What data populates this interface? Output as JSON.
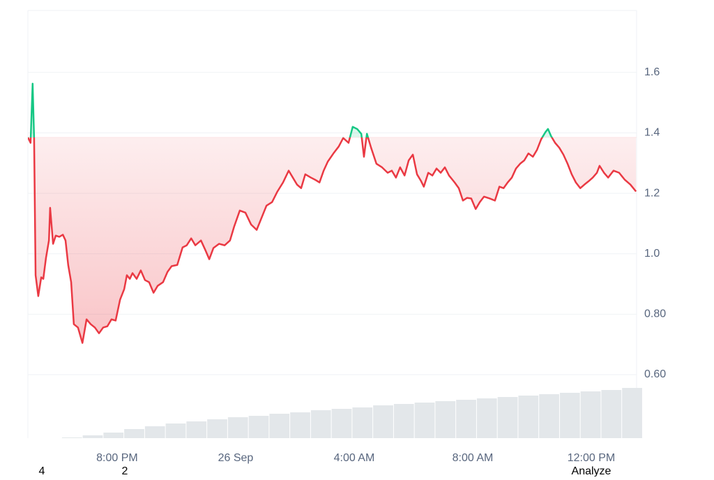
{
  "chart_data": {
    "type": "line",
    "x": [
      0,
      0.09,
      0.16,
      0.21,
      0.26,
      0.35,
      0.45,
      0.52,
      0.61,
      0.71,
      0.75,
      0.85,
      0.94,
      1.06,
      1.18,
      1.27,
      1.36,
      1.46,
      1.55,
      1.69,
      1.84,
      1.98,
      2.12,
      2.26,
      2.4,
      2.54,
      2.68,
      2.82,
      2.96,
      3.11,
      3.25,
      3.34,
      3.44,
      3.53,
      3.67,
      3.81,
      3.95,
      4.09,
      4.24,
      4.38,
      4.56,
      4.71,
      4.85,
      5.04,
      5.22,
      5.36,
      5.51,
      5.65,
      5.84,
      5.98,
      6.12,
      6.26,
      6.45,
      6.64,
      6.82,
      6.96,
      7.15,
      7.34,
      7.53,
      7.72,
      7.86,
      8.05,
      8.24,
      8.42,
      8.61,
      8.8,
      8.94,
      9.08,
      9.22,
      9.36,
      9.55,
      9.69,
      9.84,
      9.98,
      10.12,
      10.31,
      10.49,
      10.64,
      10.82,
      10.96,
      11.11,
      11.25,
      11.34,
      11.44,
      11.58,
      11.76,
      11.95,
      12.14,
      12.28,
      12.42,
      12.56,
      12.71,
      12.85,
      12.99,
      13.13,
      13.27,
      13.36,
      13.51,
      13.65,
      13.79,
      13.93,
      14.07,
      14.21,
      14.4,
      14.54,
      14.68,
      14.82,
      14.96,
      15.11,
      15.25,
      15.39,
      15.58,
      15.76,
      15.91,
      16.05,
      16.19,
      16.33,
      16.47,
      16.61,
      16.75,
      16.89,
      17.04,
      17.18,
      17.32,
      17.46,
      17.55,
      17.65,
      17.79,
      17.93,
      18.07,
      18.21,
      18.35,
      18.49,
      18.64,
      18.78,
      18.92,
      19.06,
      19.2,
      19.29,
      19.44,
      19.58,
      19.76,
      19.95,
      20.14,
      20.33,
      20.52
    ],
    "values": [
      1.385,
      1.367,
      1.563,
      1.379,
      0.929,
      0.86,
      0.922,
      0.917,
      0.986,
      1.044,
      1.152,
      1.033,
      1.06,
      1.056,
      1.063,
      1.044,
      0.963,
      0.906,
      0.767,
      0.756,
      0.705,
      0.783,
      0.767,
      0.756,
      0.737,
      0.756,
      0.76,
      0.783,
      0.779,
      0.848,
      0.883,
      0.929,
      0.917,
      0.936,
      0.917,
      0.945,
      0.913,
      0.906,
      0.871,
      0.894,
      0.906,
      0.94,
      0.959,
      0.963,
      1.021,
      1.028,
      1.051,
      1.028,
      1.044,
      1.014,
      0.982,
      1.019,
      1.033,
      1.028,
      1.044,
      1.09,
      1.143,
      1.136,
      1.097,
      1.079,
      1.113,
      1.159,
      1.171,
      1.206,
      1.236,
      1.275,
      1.252,
      1.229,
      1.217,
      1.263,
      1.252,
      1.245,
      1.236,
      1.275,
      1.305,
      1.332,
      1.355,
      1.383,
      1.367,
      1.42,
      1.413,
      1.397,
      1.321,
      1.397,
      1.351,
      1.298,
      1.286,
      1.268,
      1.275,
      1.252,
      1.286,
      1.259,
      1.309,
      1.328,
      1.263,
      1.24,
      1.222,
      1.268,
      1.259,
      1.282,
      1.268,
      1.286,
      1.259,
      1.236,
      1.217,
      1.176,
      1.185,
      1.183,
      1.148,
      1.171,
      1.189,
      1.183,
      1.176,
      1.222,
      1.217,
      1.236,
      1.252,
      1.282,
      1.298,
      1.309,
      1.332,
      1.321,
      1.344,
      1.379,
      1.402,
      1.413,
      1.39,
      1.367,
      1.351,
      1.328,
      1.298,
      1.263,
      1.236,
      1.217,
      1.229,
      1.24,
      1.252,
      1.268,
      1.291,
      1.268,
      1.252,
      1.275,
      1.268,
      1.245,
      1.229,
      1.206
    ],
    "baseline": 1.385,
    "color_up": "#16c784",
    "color_down": "#ea3943",
    "xlim": [
      0,
      20.54
    ],
    "xticks": [
      {
        "value": 3.01,
        "label": "8:00 PM"
      },
      {
        "value": 7.01,
        "label": "26 Sep"
      },
      {
        "value": 11.01,
        "label": "4:00 AM"
      },
      {
        "value": 15.01,
        "label": "8:00 AM"
      },
      {
        "value": 19.01,
        "label": "12:00 PM"
      }
    ],
    "ylim": [
      0.39,
      1.805
    ],
    "yticks": [
      {
        "value": 0.6,
        "label": "0.60"
      },
      {
        "value": 0.8,
        "label": "0.80"
      },
      {
        "value": 1.0,
        "label": "1.0"
      },
      1.2,
      1.4,
      1.6
    ],
    "grid": true,
    "volume": {
      "x": [
        1.5,
        2.2,
        2.9,
        3.6,
        4.3,
        5.0,
        5.7,
        6.4,
        7.1,
        7.8,
        8.5,
        9.2,
        9.9,
        10.6,
        11.3,
        12.0,
        12.7,
        13.4,
        14.1,
        14.8,
        15.5,
        16.2,
        16.9,
        17.6,
        18.3,
        19.0,
        19.7,
        20.4
      ],
      "values": [
        1,
        4,
        8,
        13,
        17,
        21,
        24,
        27,
        30,
        32,
        35,
        37,
        40,
        42,
        44,
        47,
        49,
        51,
        53,
        55,
        57,
        59,
        61,
        63,
        65,
        67,
        69,
        72
      ],
      "color": "#e3e7ea",
      "y2lim": [
        0,
        100
      ]
    }
  },
  "footer": [
    "4",
    "2",
    "Analyze"
  ]
}
